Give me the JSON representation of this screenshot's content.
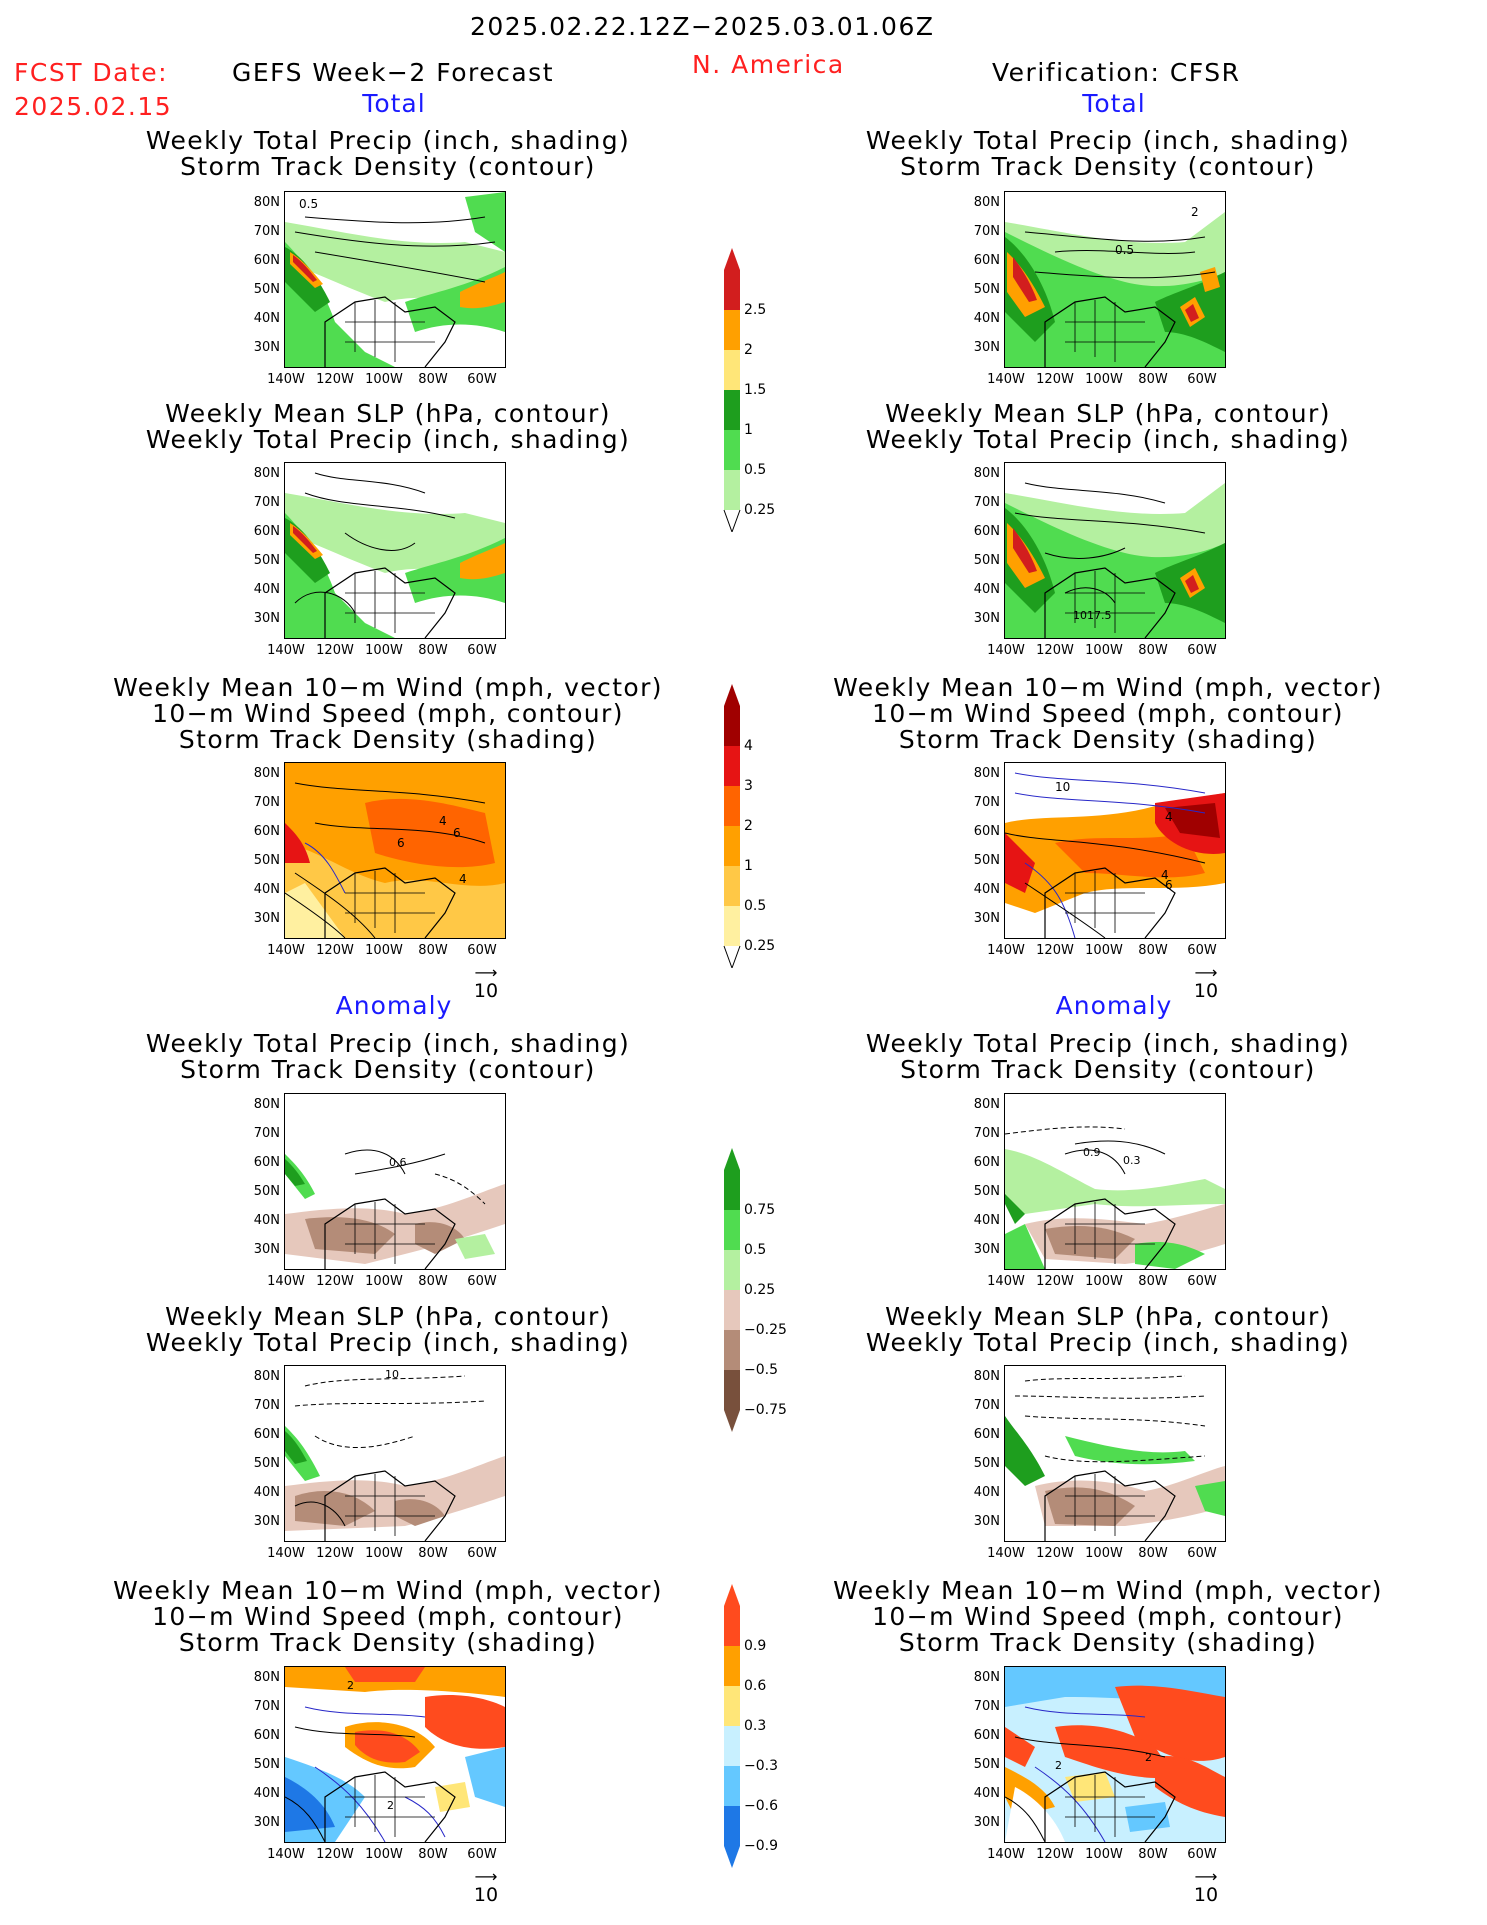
{
  "header": {
    "date_range": "2025.02.22.12Z−2025.03.01.06Z",
    "fcst_label": "FCST Date:",
    "fcst_date": "2025.02.15",
    "left_title": "GEFS Week−2 Forecast",
    "region": "N. America",
    "right_title": "Verification: CFSR"
  },
  "sections": {
    "total": "Total",
    "anomaly": "Anomaly"
  },
  "panel_titles": {
    "precip_storm": [
      "Weekly Total Precip (inch, shading)",
      "Storm Track Density (contour)"
    ],
    "slp_precip": [
      "Weekly Mean SLP (hPa, contour)",
      "Weekly Total Precip (inch, shading)"
    ],
    "wind_storm": [
      "Weekly Mean 10−m Wind (mph, vector)",
      "10−m Wind Speed (mph, contour)",
      "Storm Track Density (shading)"
    ]
  },
  "axes": {
    "lat_labels": [
      "80N",
      "70N",
      "60N",
      "50N",
      "40N",
      "30N"
    ],
    "lon_labels": [
      "140W",
      "120W",
      "100W",
      "80W",
      "60W"
    ]
  },
  "vector_ref": "10",
  "colorbars": {
    "precip_total": [
      "2.5",
      "2",
      "1.5",
      "1",
      "0.5",
      "0.25"
    ],
    "storm_total": [
      "4",
      "3",
      "2",
      "1",
      "0.5",
      "0.25"
    ],
    "precip_anom": [
      "0.75",
      "0.5",
      "0.25",
      "−0.25",
      "−0.5",
      "−0.75"
    ],
    "storm_anom": [
      "0.9",
      "0.6",
      "0.3",
      "−0.3",
      "−0.6",
      "−0.9"
    ]
  },
  "colors": {
    "precip_total": [
      "#d21e1e",
      "#ffa000",
      "#ffe678",
      "#1e9e1e",
      "#50dc50",
      "#b4f0a0"
    ],
    "storm_total": [
      "#a00000",
      "#e61414",
      "#ff6400",
      "#ffa000",
      "#ffc846",
      "#fff0a0"
    ],
    "precip_anom": [
      "#1e9e1e",
      "#50dc50",
      "#b4f0a0",
      "#e6c8bc",
      "#b48c78",
      "#78503c"
    ],
    "storm_anom": [
      "#ff4b1e",
      "#ffa000",
      "#ffe678",
      "#c8f0ff",
      "#64c8ff",
      "#1e78e6"
    ]
  },
  "contour_labels": {
    "r1_left": "0.5",
    "r1_right_a": "0.5",
    "r1_right_b": "2",
    "r2_right": "1017.5",
    "r3_left_a": "4",
    "r3_left_b": "6",
    "r3_left_c": "6",
    "r3_left_d": "4",
    "r3_right_a": "4",
    "r3_right_b": "4",
    "r3_right_c": "6",
    "r3_right_d": "10",
    "r4_left": "0.6",
    "r4_right_a": "0.9",
    "r4_right_b": "0.3",
    "r5_left": "10",
    "r6_left_a": "2",
    "r6_left_b": "2",
    "r6_right_a": "2",
    "r6_right_b": "2"
  }
}
